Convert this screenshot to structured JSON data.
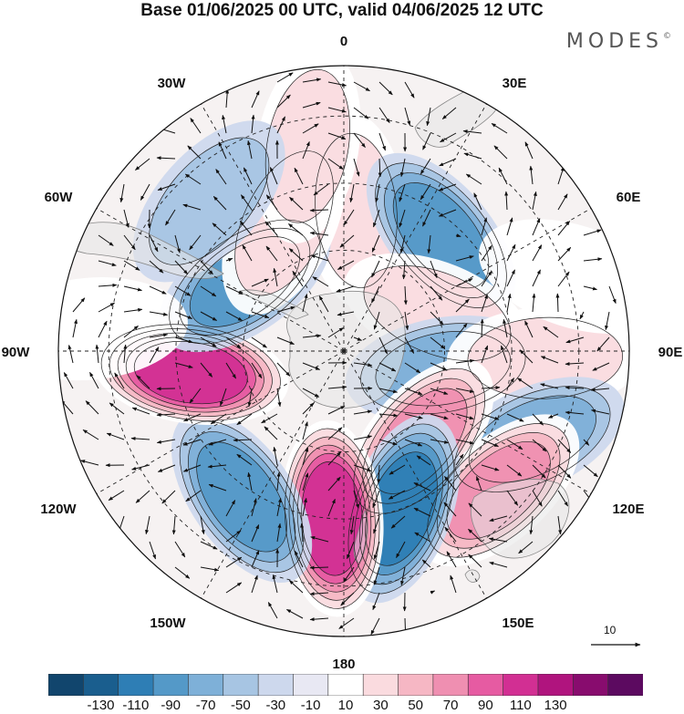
{
  "title": "Base 01/06/2025 00 UTC, valid 04/06/2025 12 UTC",
  "brand": "MODES",
  "brand_mark": "©",
  "map": {
    "projection": "south polar stereographic",
    "longitude_labels": {
      "top": "0",
      "top_right": "30E",
      "upper_right": "60E",
      "right": "90E",
      "lower_right": "120E",
      "bottom_right": "150E",
      "bottom": "180",
      "bottom_left": "150W",
      "lower_left": "120W",
      "left": "90W",
      "upper_left": "60W",
      "top_left": "30W"
    },
    "reference_vector_label": "10",
    "land_color": "#e6e6e6",
    "coast_color": "#888888",
    "anomaly_centers": [
      {
        "lon_deg": 5,
        "colat_deg": 42,
        "value": 45
      },
      {
        "lon_deg": 40,
        "colat_deg": 45,
        "value": -70
      },
      {
        "lon_deg": 68,
        "colat_deg": 30,
        "value": 30
      },
      {
        "lon_deg": 100,
        "colat_deg": 30,
        "value": -60
      },
      {
        "lon_deg": 92,
        "colat_deg": 60,
        "value": 30
      },
      {
        "lon_deg": 115,
        "colat_deg": 62,
        "value": -50
      },
      {
        "lon_deg": 140,
        "colat_deg": 35,
        "value": 70
      },
      {
        "lon_deg": 132,
        "colat_deg": 62,
        "value": 75
      },
      {
        "lon_deg": 160,
        "colat_deg": 50,
        "value": -90
      },
      {
        "lon_deg": 184,
        "colat_deg": 50,
        "value": 115
      },
      {
        "lon_deg": 215,
        "colat_deg": 53,
        "value": -80
      },
      {
        "lon_deg": 262,
        "colat_deg": 46,
        "value": 110
      },
      {
        "lon_deg": 305,
        "colat_deg": 36,
        "value": -80
      },
      {
        "lon_deg": 335,
        "colat_deg": 42,
        "value": 40
      },
      {
        "lon_deg": 350,
        "colat_deg": 62,
        "value": 45
      },
      {
        "lon_deg": 318,
        "colat_deg": 60,
        "value": -30
      },
      {
        "lon_deg": 275,
        "colat_deg": 76,
        "value": 25
      },
      {
        "lon_deg": 72,
        "colat_deg": 72,
        "value": 20
      }
    ]
  },
  "colorbar": {
    "colors": [
      "#11456d",
      "#1a5e8e",
      "#2e7eb5",
      "#5499c8",
      "#7eb0d8",
      "#a7c5e3",
      "#cdd8ed",
      "#e8e8f3",
      "#ffffff",
      "#fadbdf",
      "#f6b7c4",
      "#ef8fb1",
      "#e65ba2",
      "#d22f93",
      "#b0147e",
      "#880c6e",
      "#5c0a60"
    ],
    "labels": [
      "-130",
      "-110",
      "-90",
      "-70",
      "-50",
      "-30",
      "-10",
      "10",
      "30",
      "50",
      "70",
      "90",
      "110",
      "130"
    ]
  }
}
